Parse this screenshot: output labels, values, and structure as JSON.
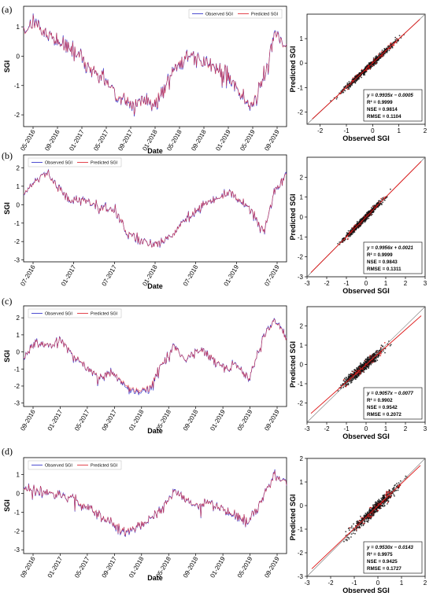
{
  "colors": {
    "observed": "#3a3acc",
    "predicted": "#e0303a",
    "scatter_points": "#111111",
    "fit_line": "#dd1111",
    "one_to_one": "#777777"
  },
  "panel_labels": [
    "(a)",
    "(b)",
    "(c)",
    "(d)"
  ],
  "chart_data": [
    {
      "type": "line",
      "panel": "(a)",
      "xlabel": "Date",
      "ylabel": "SGI",
      "legend": {
        "placement": "top-right",
        "entries": [
          "Observed SGI",
          "Predicted SGI"
        ]
      },
      "yticks": [
        "-2",
        "-1",
        "0",
        "1"
      ],
      "ylim": [
        -2.4,
        1.7
      ],
      "x_tick_labels": [
        "05-2016",
        "09-2016",
        "01-2017",
        "05-2017",
        "09-2017",
        "01-2018",
        "05-2018",
        "09-2018",
        "01-2019",
        "05-2019",
        "09-2019"
      ],
      "x_dates": [
        "2016-04",
        "2016-06",
        "2016-08",
        "2016-10",
        "2016-12",
        "2017-02",
        "2017-04",
        "2017-06",
        "2017-08",
        "2017-10",
        "2017-12",
        "2018-02",
        "2018-04",
        "2018-06",
        "2018-08",
        "2018-10",
        "2018-12",
        "2019-02",
        "2019-04",
        "2019-06",
        "2019-08",
        "2019-10",
        "2019-12"
      ],
      "series": [
        {
          "name": "Observed SGI",
          "values": [
            0.9,
            1.2,
            0.7,
            0.5,
            0.3,
            -0.1,
            -0.6,
            -0.9,
            -1.4,
            -1.6,
            -1.5,
            -1.7,
            -0.9,
            -0.3,
            0.1,
            -0.2,
            -0.4,
            -0.6,
            -1.2,
            -1.7,
            -0.9,
            0.8,
            0.3
          ]
        },
        {
          "name": "Predicted SGI",
          "values": [
            0.9,
            1.15,
            0.72,
            0.5,
            0.28,
            -0.08,
            -0.58,
            -0.92,
            -1.38,
            -1.58,
            -1.52,
            -1.66,
            -0.92,
            -0.28,
            0.1,
            -0.2,
            -0.42,
            -0.58,
            -1.18,
            -1.68,
            -0.88,
            0.78,
            0.3
          ]
        }
      ]
    },
    {
      "type": "scatter",
      "panel": "(a)",
      "xlabel": "Observed SGI",
      "ylabel": "Predicted SGI",
      "xlim": [
        -2.5,
        2
      ],
      "ylim": [
        -2.5,
        2
      ],
      "xticks": [
        "-2",
        "-1",
        "0",
        "1",
        "2"
      ],
      "yticks": [
        "-2",
        "-1",
        "0",
        "1"
      ],
      "fit": {
        "slope": 0.9935,
        "intercept": -0.0005
      },
      "stats": [
        "y = 0.9935x − 0.0005",
        "R² = 0.9999",
        "NSE = 0.9814",
        "RMSE = 0.1104"
      ]
    },
    {
      "type": "line",
      "panel": "(b)",
      "xlabel": "Date",
      "ylabel": "SGI",
      "legend": {
        "placement": "top-left",
        "entries": [
          "Observed SGI",
          "Predicted SGI"
        ]
      },
      "yticks": [
        "-3",
        "-2",
        "-1",
        "0",
        "1",
        "2"
      ],
      "ylim": [
        -3.1,
        2.7
      ],
      "x_tick_labels": [
        "07-2016",
        "01-2017",
        "07-2017",
        "01-2018",
        "07-2018",
        "01-2019",
        "07-2019"
      ],
      "x_dates": [
        "2016-01",
        "2016-03",
        "2016-05",
        "2016-07",
        "2016-09",
        "2016-11",
        "2017-01",
        "2017-03",
        "2017-05",
        "2017-07",
        "2017-09",
        "2017-11",
        "2018-01",
        "2018-03",
        "2018-05",
        "2018-07",
        "2018-09",
        "2018-11",
        "2019-01",
        "2019-03",
        "2019-05",
        "2019-07",
        "2019-09",
        "2019-11"
      ],
      "series": [
        {
          "name": "Observed SGI",
          "values": [
            0.6,
            1.3,
            1.8,
            0.9,
            0.3,
            0.3,
            0.0,
            -0.2,
            -0.3,
            -1.5,
            -1.9,
            -2.1,
            -2.1,
            -1.7,
            -0.8,
            -0.4,
            0.0,
            0.4,
            0.7,
            0.2,
            -0.4,
            -1.5,
            0.8,
            1.6
          ]
        },
        {
          "name": "Predicted SGI",
          "values": [
            0.62,
            1.28,
            1.78,
            0.88,
            0.32,
            0.28,
            0.02,
            -0.22,
            -0.3,
            -1.48,
            -1.88,
            -2.12,
            -2.08,
            -1.7,
            -0.82,
            -0.38,
            0.02,
            0.38,
            0.7,
            0.22,
            -0.38,
            -1.48,
            0.82,
            1.58
          ]
        }
      ]
    },
    {
      "type": "scatter",
      "panel": "(b)",
      "xlabel": "Observed SGI",
      "ylabel": "Predicted SGI",
      "xlim": [
        -3,
        3
      ],
      "ylim": [
        -3,
        3
      ],
      "xticks": [
        "-3",
        "-2",
        "-1",
        "0",
        "1",
        "2",
        "3"
      ],
      "yticks": [
        "-3",
        "-2",
        "-1",
        "0",
        "1",
        "2"
      ],
      "fit": {
        "slope": 0.9956,
        "intercept": 0.0021
      },
      "stats": [
        "y = 0.9956x + 0.0021",
        "R² = 0.9999",
        "NSE = 0.9843",
        "RMSE = 0.1311"
      ]
    },
    {
      "type": "line",
      "panel": "(c)",
      "xlabel": "Date",
      "ylabel": "SGI",
      "legend": {
        "placement": "top-left",
        "entries": [
          "Observed SGI",
          "Predicted SGI"
        ]
      },
      "yticks": [
        "-3",
        "-2",
        "-1",
        "0",
        "1",
        "2"
      ],
      "ylim": [
        -3.2,
        2.7
      ],
      "x_tick_labels": [
        "09-2016",
        "01-2017",
        "05-2017",
        "09-2017",
        "01-2018",
        "05-2018",
        "09-2018",
        "01-2019",
        "05-2019",
        "09-2019"
      ],
      "x_dates": [
        "2016-06",
        "2016-08",
        "2016-10",
        "2016-12",
        "2017-02",
        "2017-04",
        "2017-06",
        "2017-08",
        "2017-10",
        "2017-12",
        "2018-02",
        "2018-04",
        "2018-06",
        "2018-08",
        "2018-10",
        "2018-12",
        "2019-02",
        "2019-04",
        "2019-06",
        "2019-08",
        "2019-10",
        "2019-12"
      ],
      "series": [
        {
          "name": "Observed SGI",
          "values": [
            -0.3,
            0.6,
            0.3,
            0.7,
            -0.2,
            -1.0,
            -1.5,
            -1.2,
            -1.9,
            -2.4,
            -2.2,
            -0.8,
            0.3,
            -0.5,
            0.2,
            -0.4,
            -1.0,
            -0.8,
            -1.6,
            0.6,
            2.0,
            0.9
          ]
        },
        {
          "name": "Predicted SGI",
          "values": [
            -0.28,
            0.58,
            0.32,
            0.68,
            -0.18,
            -0.98,
            -1.48,
            -1.22,
            -1.82,
            -2.3,
            -2.12,
            -0.78,
            0.28,
            -0.48,
            0.18,
            -0.38,
            -0.98,
            -0.82,
            -1.58,
            0.58,
            1.95,
            0.88
          ]
        }
      ]
    },
    {
      "type": "scatter",
      "panel": "(c)",
      "xlabel": "Observed SGI",
      "ylabel": "Predicted SGI",
      "xlim": [
        -3,
        3
      ],
      "ylim": [
        -3,
        3
      ],
      "xticks": [
        "-3",
        "-2",
        "-1",
        "0",
        "1",
        "2",
        "3"
      ],
      "yticks": [
        "-2",
        "-1",
        "0",
        "1",
        "2"
      ],
      "fit": {
        "slope": 0.9057,
        "intercept": -0.0077
      },
      "stats": [
        "y = 0.9057x − 0.0077",
        "R² = 0.9902",
        "NSE = 0.9542",
        "RMSE = 0.2072"
      ]
    },
    {
      "type": "line",
      "panel": "(d)",
      "xlabel": "Date",
      "ylabel": "SGI",
      "legend": {
        "placement": "top-left",
        "entries": [
          "Observed SGI",
          "Predicted SGI"
        ]
      },
      "yticks": [
        "-3",
        "-2",
        "-1",
        "0",
        "1"
      ],
      "ylim": [
        -3.2,
        1.9
      ],
      "x_tick_labels": [
        "09-2016",
        "01-2017",
        "05-2017",
        "09-2017",
        "01-2018",
        "05-2018",
        "09-2018",
        "01-2019",
        "05-2019",
        "09-2019"
      ],
      "x_dates": [
        "2016-06",
        "2016-08",
        "2016-10",
        "2016-12",
        "2017-02",
        "2017-04",
        "2017-06",
        "2017-08",
        "2017-10",
        "2017-12",
        "2018-02",
        "2018-04",
        "2018-06",
        "2018-08",
        "2018-10",
        "2018-12",
        "2019-02",
        "2019-04",
        "2019-06",
        "2019-08",
        "2019-10",
        "2019-12"
      ],
      "series": [
        {
          "name": "Observed SGI",
          "values": [
            0.3,
            0.2,
            0.0,
            -0.1,
            -0.3,
            -0.7,
            -1.2,
            -1.6,
            -2.0,
            -1.8,
            -1.5,
            -0.8,
            0.1,
            -0.4,
            -0.6,
            -0.5,
            -0.9,
            -1.2,
            -1.5,
            -0.3,
            0.9,
            0.6
          ]
        },
        {
          "name": "Predicted SGI",
          "values": [
            0.28,
            0.22,
            0.02,
            -0.12,
            -0.28,
            -0.68,
            -1.18,
            -1.58,
            -1.95,
            -1.78,
            -1.48,
            -0.82,
            0.08,
            -0.38,
            -0.58,
            -0.52,
            -0.88,
            -1.18,
            -1.48,
            -0.32,
            0.88,
            0.58
          ]
        }
      ]
    },
    {
      "type": "scatter",
      "panel": "(d)",
      "xlabel": "Observed SGI",
      "ylabel": "Predicted SGI",
      "xlim": [
        -3,
        2
      ],
      "ylim": [
        -3,
        2
      ],
      "xticks": [
        "-3",
        "-2",
        "-1",
        "0",
        "1",
        "2"
      ],
      "yticks": [
        "-3",
        "-2",
        "-1",
        "0",
        "1",
        "2"
      ],
      "fit": {
        "slope": 0.953,
        "intercept": -0.0143
      },
      "stats": [
        "y = 0.9530x − 0.0143",
        "R² = 0.9975",
        "NSE = 0.9425",
        "RMSE = 0.1727"
      ]
    }
  ]
}
